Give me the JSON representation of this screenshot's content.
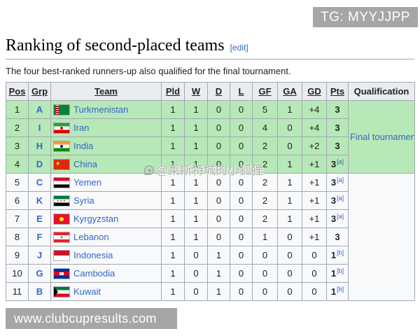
{
  "badges": {
    "top_right": "TG: MYYJJPP",
    "bottom_left": "www.clubcupresults.com"
  },
  "watermark": {
    "icon": "weibo-icon",
    "text": "@莱斯特城的小狐狸"
  },
  "section": {
    "title": "Ranking of second-placed teams",
    "edit_open": "[",
    "edit_label": "edit",
    "edit_close": "]",
    "intro": "The four best-ranked runners-up also qualified for the final tournament."
  },
  "table": {
    "headers": [
      "Pos",
      "Grp",
      "Team",
      "Pld",
      "W",
      "D",
      "L",
      "GF",
      "GA",
      "GD",
      "Pts",
      "Qualification"
    ],
    "qualification_final": "Final tournament",
    "rows": [
      {
        "pos": "1",
        "grp": "A",
        "team": "Turkmenistan",
        "flag": "turkmenistan",
        "pld": "1",
        "w": "1",
        "d": "0",
        "l": "0",
        "gf": "5",
        "ga": "1",
        "gd": "+4",
        "pts": "3",
        "note": "",
        "qualified": true
      },
      {
        "pos": "2",
        "grp": "I",
        "team": "Iran",
        "flag": "iran",
        "pld": "1",
        "w": "1",
        "d": "0",
        "l": "0",
        "gf": "4",
        "ga": "0",
        "gd": "+4",
        "pts": "3",
        "note": "",
        "qualified": true
      },
      {
        "pos": "3",
        "grp": "H",
        "team": "India",
        "flag": "india",
        "pld": "1",
        "w": "1",
        "d": "0",
        "l": "0",
        "gf": "2",
        "ga": "0",
        "gd": "+2",
        "pts": "3",
        "note": "",
        "qualified": true
      },
      {
        "pos": "4",
        "grp": "D",
        "team": "China",
        "flag": "china",
        "pld": "1",
        "w": "1",
        "d": "0",
        "l": "0",
        "gf": "2",
        "ga": "1",
        "gd": "+1",
        "pts": "3",
        "note": "[a]",
        "qualified": true
      },
      {
        "pos": "5",
        "grp": "C",
        "team": "Yemen",
        "flag": "yemen",
        "pld": "1",
        "w": "1",
        "d": "0",
        "l": "0",
        "gf": "2",
        "ga": "1",
        "gd": "+1",
        "pts": "3",
        "note": "[a]",
        "qualified": false
      },
      {
        "pos": "6",
        "grp": "K",
        "team": "Syria",
        "flag": "syria",
        "pld": "1",
        "w": "1",
        "d": "0",
        "l": "0",
        "gf": "2",
        "ga": "1",
        "gd": "+1",
        "pts": "3",
        "note": "[a]",
        "qualified": false
      },
      {
        "pos": "7",
        "grp": "E",
        "team": "Kyrgyzstan",
        "flag": "kyrgyzstan",
        "pld": "1",
        "w": "1",
        "d": "0",
        "l": "0",
        "gf": "2",
        "ga": "1",
        "gd": "+1",
        "pts": "3",
        "note": "[a]",
        "qualified": false
      },
      {
        "pos": "8",
        "grp": "F",
        "team": "Lebanon",
        "flag": "lebanon",
        "pld": "1",
        "w": "1",
        "d": "0",
        "l": "0",
        "gf": "1",
        "ga": "0",
        "gd": "+1",
        "pts": "3",
        "note": "",
        "qualified": false
      },
      {
        "pos": "9",
        "grp": "J",
        "team": "Indonesia",
        "flag": "indonesia",
        "pld": "1",
        "w": "0",
        "d": "1",
        "l": "0",
        "gf": "0",
        "ga": "0",
        "gd": "0",
        "pts": "1",
        "note": "[b]",
        "qualified": false
      },
      {
        "pos": "10",
        "grp": "G",
        "team": "Cambodia",
        "flag": "cambodia",
        "pld": "1",
        "w": "0",
        "d": "1",
        "l": "0",
        "gf": "0",
        "ga": "0",
        "gd": "0",
        "pts": "1",
        "note": "[b]",
        "qualified": false
      },
      {
        "pos": "11",
        "grp": "B",
        "team": "Kuwait",
        "flag": "kuwait",
        "pld": "1",
        "w": "0",
        "d": "1",
        "l": "0",
        "gf": "0",
        "ga": "0",
        "gd": "0",
        "pts": "1",
        "note": "[b]",
        "qualified": false
      }
    ]
  },
  "colors": {
    "qualified_green": "#b7e8b7",
    "header_gray": "#eaecf0",
    "border": "#a2a9b1",
    "link_blue": "#3366cc",
    "badge_gray": "#a6a6a6"
  }
}
